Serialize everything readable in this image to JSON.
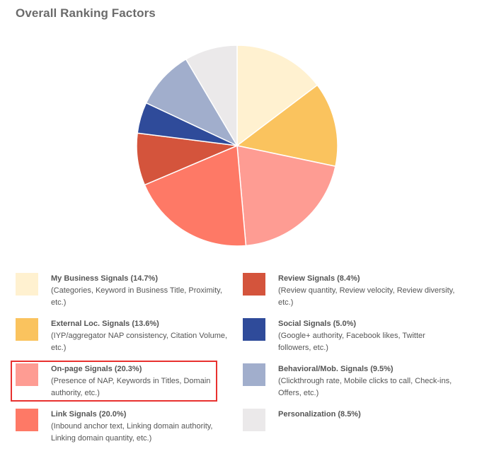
{
  "chart_data": {
    "type": "pie",
    "title": "Overall Ranking Factors",
    "slices": [
      {
        "label": "My Business Signals (14.7%)",
        "description": "(Categories, Keyword in Business Title, Proximity, etc.)",
        "value": 14.7,
        "color": "#fff1d0"
      },
      {
        "label": "External Loc. Signals (13.6%)",
        "description": "(IYP/aggregator NAP consistency, Citation Volume, etc.)",
        "value": 13.6,
        "color": "#fac35e"
      },
      {
        "label": "On-page Signals (20.3%)",
        "description": "(Presence of NAP, Keywords in Titles, Domain authority, etc.)",
        "value": 20.3,
        "color": "#fe9c93"
      },
      {
        "label": "Link Signals (20.0%)",
        "description": "(Inbound anchor text, Linking domain authority, Linking domain quantity, etc.)",
        "value": 20.0,
        "color": "#fe7966"
      },
      {
        "label": "Review Signals (8.4%)",
        "description": "(Review quantity, Review velocity, Review diversity, etc.)",
        "value": 8.4,
        "color": "#d4543c"
      },
      {
        "label": "Social Signals (5.0%)",
        "description": "(Google+ authority, Facebook likes, Twitter followers, etc.)",
        "value": 5.0,
        "color": "#2f4b9a"
      },
      {
        "label": "Behavioral/Mob. Signals (9.5%)",
        "description": "(Clickthrough rate, Mobile clicks to call, Check-ins, Offers, etc.)",
        "value": 9.5,
        "color": "#a1aecc"
      },
      {
        "label": "Personalization (8.5%)",
        "description": "",
        "value": 8.5,
        "color": "#ebe9ea"
      }
    ],
    "legend_layout": "two-columns-below",
    "highlighted": "On-page Signals (20.3%)",
    "highlight_color": "#e8312f"
  }
}
